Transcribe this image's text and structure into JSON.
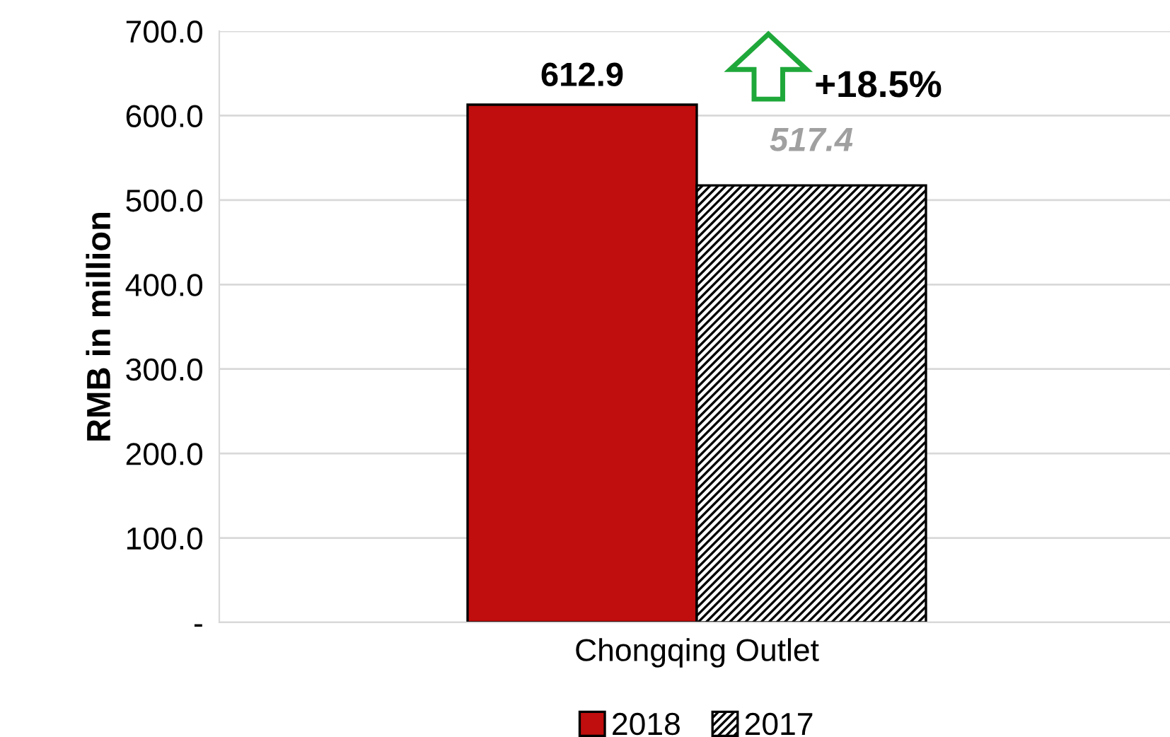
{
  "chart_data": {
    "type": "bar",
    "ylabel": "RMB in million",
    "categories": [
      "Chongqing Outlet"
    ],
    "series": [
      {
        "name": "2018",
        "color": "#c00d0d",
        "values": [
          612.9
        ],
        "value_labels": [
          "612.9"
        ]
      },
      {
        "name": "2017",
        "color": "#000000",
        "values": [
          517.4
        ],
        "value_labels": [
          "517.4"
        ]
      }
    ],
    "ylim": [
      0,
      700
    ],
    "yticks": [
      {
        "value": 0,
        "label": "-"
      },
      {
        "value": 100,
        "label": "100.0"
      },
      {
        "value": 200,
        "label": "200.0"
      },
      {
        "value": 300,
        "label": "300.0"
      },
      {
        "value": 400,
        "label": "400.0"
      },
      {
        "value": 500,
        "label": "500.0"
      },
      {
        "value": 600,
        "label": "600.0"
      },
      {
        "value": 700,
        "label": "700.0"
      }
    ],
    "grid": "y",
    "legend": "bottom",
    "annotations": [
      "+18.5%"
    ]
  }
}
